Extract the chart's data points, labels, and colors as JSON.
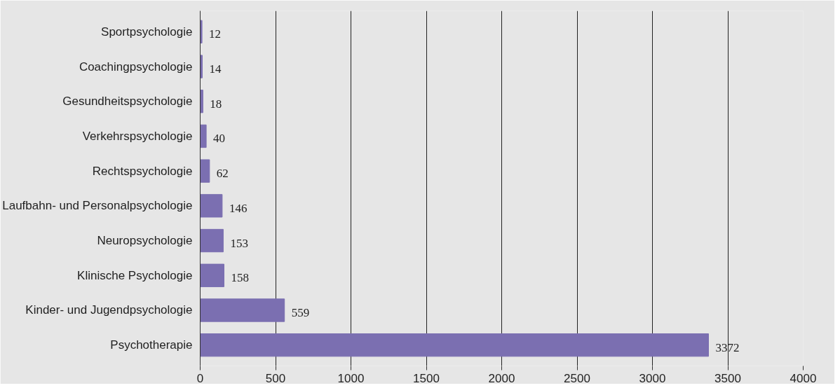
{
  "chart_data": {
    "type": "bar",
    "orientation": "horizontal",
    "categories": [
      "Sportpsychologie",
      "Coachingpsychologie",
      "Gesundheitspsychologie",
      "Verkehrspsychologie",
      "Rechtspsychologie",
      "Laufbahn- und Personalpsychologie",
      "Neuropsychologie",
      "Klinische Psychologie",
      "Kinder- und Jugendpsychologie",
      "Psychotherapie"
    ],
    "values": [
      12,
      14,
      18,
      40,
      62,
      146,
      153,
      158,
      559,
      3372
    ],
    "color": "#7b6fb1",
    "xlim": [
      0,
      4000
    ],
    "xticks": [
      0,
      500,
      1000,
      1500,
      2000,
      2500,
      3000,
      3500,
      4000
    ],
    "grid": "x",
    "data_labels": true
  }
}
